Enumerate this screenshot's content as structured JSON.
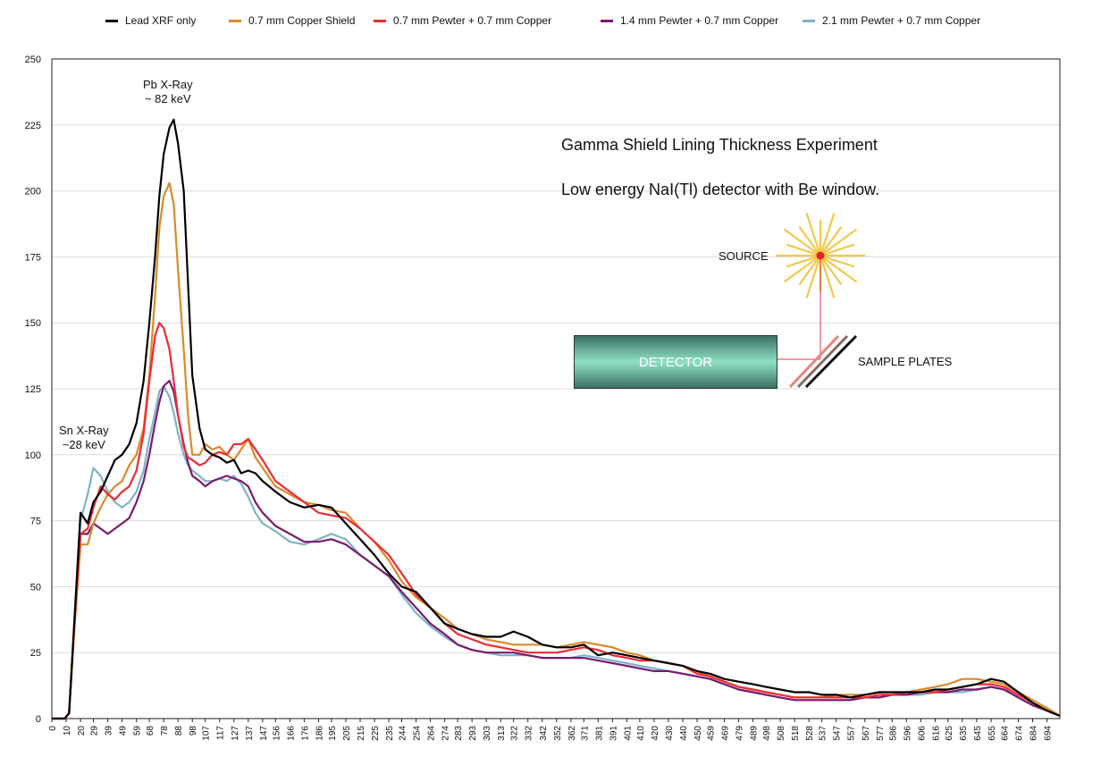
{
  "chart_data": {
    "type": "line",
    "title": "Gamma Shield Lining Thickness Experiment",
    "subtitle": "Low energy NaI(Tl) detector with Be window.",
    "xlabel": "",
    "ylabel": "",
    "xlim": [
      0,
      703
    ],
    "ylim": [
      0,
      250
    ],
    "yticks": [
      0,
      25,
      50,
      75,
      100,
      125,
      150,
      175,
      200,
      225,
      250
    ],
    "xticks": [
      0,
      10,
      20,
      29,
      39,
      49,
      59,
      68,
      78,
      88,
      98,
      107,
      117,
      127,
      137,
      147,
      156,
      166,
      176,
      186,
      195,
      205,
      215,
      225,
      235,
      244,
      254,
      264,
      274,
      283,
      293,
      303,
      313,
      322,
      332,
      342,
      352,
      362,
      371,
      381,
      391,
      401,
      410,
      420,
      430,
      440,
      450,
      459,
      469,
      479,
      489,
      498,
      508,
      518,
      528,
      537,
      547,
      557,
      567,
      577,
      586,
      596,
      606,
      616,
      625,
      635,
      645,
      655,
      664,
      674,
      684,
      694
    ],
    "legend_position": "top",
    "annotations": [
      {
        "text_line1": "Pb X-Ray",
        "text_line2": "~ 82 keV",
        "x": 88,
        "y": 232
      },
      {
        "text_line1": "Sn X-Ray",
        "text_line2": "~28 keV",
        "x": 30,
        "y": 105
      }
    ],
    "x": [
      0,
      5,
      9,
      12,
      16,
      20,
      25,
      29,
      34,
      39,
      44,
      49,
      54,
      59,
      64,
      68,
      72,
      75,
      78,
      82,
      85,
      88,
      92,
      95,
      98,
      103,
      107,
      112,
      117,
      122,
      127,
      132,
      137,
      142,
      147,
      156,
      166,
      176,
      186,
      195,
      205,
      215,
      225,
      235,
      244,
      254,
      264,
      274,
      283,
      293,
      303,
      313,
      322,
      332,
      342,
      352,
      362,
      371,
      381,
      391,
      401,
      410,
      420,
      430,
      440,
      450,
      459,
      469,
      479,
      489,
      498,
      508,
      518,
      528,
      537,
      547,
      557,
      567,
      577,
      586,
      596,
      606,
      616,
      625,
      635,
      645,
      655,
      664,
      674,
      684,
      694,
      703
    ],
    "series": [
      {
        "name": "Lead XRF only",
        "color": "#000000",
        "values": [
          0,
          0,
          0,
          2,
          40,
          78,
          74,
          82,
          86,
          92,
          98,
          100,
          104,
          112,
          128,
          150,
          175,
          198,
          214,
          224,
          227,
          218,
          200,
          165,
          130,
          110,
          102,
          100,
          99,
          97,
          98,
          93,
          94,
          93,
          90,
          86,
          82,
          80,
          81,
          80,
          74,
          68,
          62,
          55,
          50,
          48,
          42,
          36,
          34,
          32,
          31,
          31,
          33,
          31,
          28,
          27,
          27,
          28,
          24,
          25,
          24,
          23,
          22,
          21,
          20,
          18,
          17,
          15,
          14,
          13,
          12,
          11,
          10,
          10,
          9,
          9,
          8,
          9,
          10,
          10,
          10,
          10,
          11,
          11,
          12,
          13,
          15,
          14,
          10,
          6,
          3,
          1
        ]
      },
      {
        "name": "0.7 mm Copper Shield",
        "color": "#d98a2a",
        "values": [
          0,
          0,
          0,
          2,
          36,
          66,
          66,
          74,
          80,
          85,
          88,
          90,
          96,
          100,
          110,
          130,
          160,
          186,
          198,
          203,
          195,
          170,
          140,
          115,
          100,
          100,
          104,
          102,
          103,
          100,
          98,
          102,
          106,
          99,
          95,
          88,
          85,
          82,
          81,
          79,
          78,
          72,
          67,
          60,
          52,
          46,
          42,
          38,
          34,
          32,
          30,
          29,
          28,
          28,
          28,
          27,
          28,
          29,
          28,
          27,
          25,
          24,
          22,
          21,
          20,
          18,
          16,
          14,
          12,
          11,
          10,
          9,
          8,
          8,
          8,
          9,
          9,
          9,
          10,
          10,
          10,
          11,
          12,
          13,
          15,
          15,
          14,
          13,
          10,
          7,
          4,
          1
        ]
      },
      {
        "name": "0.7 mm Pewter + 0.7 mm Copper",
        "color": "#ee2a35",
        "values": [
          0,
          0,
          0,
          2,
          38,
          70,
          72,
          80,
          88,
          85,
          83,
          86,
          88,
          94,
          108,
          128,
          145,
          150,
          148,
          140,
          128,
          115,
          103,
          99,
          98,
          96,
          97,
          100,
          101,
          100,
          104,
          104,
          106,
          102,
          98,
          90,
          86,
          82,
          78,
          77,
          76,
          72,
          67,
          62,
          55,
          47,
          42,
          36,
          32,
          30,
          28,
          27,
          26,
          25,
          25,
          25,
          26,
          27,
          26,
          24,
          23,
          22,
          22,
          21,
          20,
          17,
          16,
          14,
          12,
          11,
          10,
          9,
          8,
          8,
          8,
          8,
          8,
          8,
          9,
          9,
          10,
          10,
          10,
          11,
          12,
          13,
          13,
          12,
          9,
          6,
          3,
          1
        ]
      },
      {
        "name": "1.4 mm Pewter + 0.7 mm Copper",
        "color": "#7a1a6e",
        "values": [
          0,
          0,
          0,
          2,
          38,
          70,
          70,
          74,
          72,
          70,
          72,
          74,
          76,
          82,
          90,
          100,
          112,
          120,
          126,
          128,
          124,
          115,
          104,
          97,
          92,
          90,
          88,
          90,
          91,
          92,
          91,
          90,
          88,
          82,
          78,
          73,
          70,
          67,
          67,
          68,
          66,
          62,
          58,
          54,
          48,
          42,
          36,
          32,
          28,
          26,
          25,
          25,
          25,
          24,
          23,
          23,
          23,
          23,
          22,
          21,
          20,
          19,
          18,
          18,
          17,
          16,
          15,
          13,
          11,
          10,
          9,
          8,
          7,
          7,
          7,
          7,
          7,
          8,
          8,
          9,
          9,
          10,
          10,
          10,
          11,
          11,
          12,
          11,
          8,
          5,
          3,
          1
        ]
      },
      {
        "name": "2.1 mm Pewter + 0.7 mm Copper",
        "color": "#7fb3c8",
        "values": [
          0,
          0,
          0,
          2,
          40,
          75,
          85,
          95,
          92,
          86,
          82,
          80,
          82,
          86,
          94,
          106,
          116,
          124,
          126,
          122,
          116,
          108,
          100,
          96,
          94,
          92,
          90,
          90,
          91,
          90,
          92,
          89,
          84,
          78,
          74,
          71,
          67,
          66,
          68,
          70,
          68,
          62,
          58,
          54,
          47,
          40,
          35,
          31,
          28,
          26,
          25,
          24,
          24,
          24,
          23,
          23,
          23,
          24,
          23,
          22,
          21,
          20,
          19,
          18,
          17,
          16,
          15,
          13,
          11,
          10,
          9,
          8,
          7,
          7,
          7,
          7,
          7,
          8,
          8,
          9,
          9,
          9,
          10,
          10,
          10,
          11,
          12,
          11,
          8,
          5,
          3,
          1
        ]
      }
    ]
  },
  "diagram": {
    "source_label": "SOURCE",
    "detector_label": "DETECTOR",
    "sample_label": "SAMPLE PLATES"
  }
}
